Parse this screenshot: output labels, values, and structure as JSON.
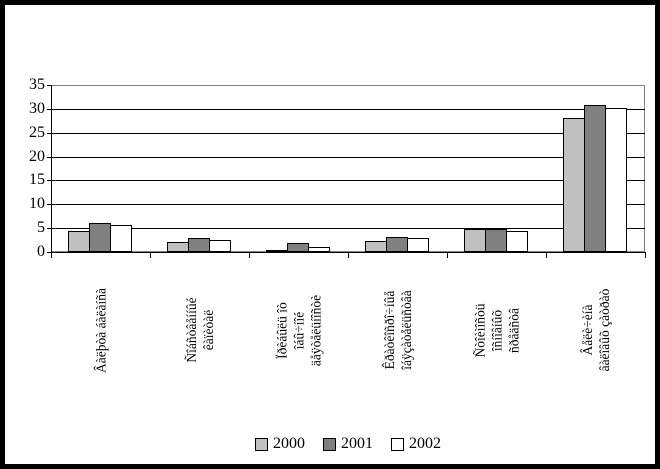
{
  "chart_data": {
    "type": "bar",
    "title": "",
    "xlabel": "",
    "ylabel": "",
    "ylim": [
      0,
      35
    ],
    "ytick_step": 5,
    "yticks": [
      0,
      5,
      10,
      15,
      20,
      25,
      30,
      35
    ],
    "grid": true,
    "legend_position": "bottom",
    "categories": [
      {
        "lines": [
          "Âàëþòà áàëàíñà"
        ]
      },
      {
        "lines": [
          "Ñîáñòâåííûé",
          "êàïèòàë"
        ]
      },
      {
        "lines": [
          "Ïðèáûëü îò",
          "îáû÷íîé",
          "äåÿòåëüíîñòè"
        ]
      },
      {
        "lines": [
          "Êðàòêîñðî÷íûå",
          "îáÿçàòåëüñòâà"
        ]
      },
      {
        "lines": [
          "Ñòîèìîñòü",
          "îñíîâíûõ",
          "ñðåäñòâ"
        ]
      },
      {
        "lines": [
          "Âåëè÷èíà",
          "âàëîâûõ çàòðàò"
        ]
      }
    ],
    "series": [
      {
        "name": "2000",
        "color": "#c0c0c0",
        "values": [
          4.5,
          2.2,
          0.5,
          2.3,
          4.8,
          28.0
        ]
      },
      {
        "name": "2001",
        "color": "#808080",
        "values": [
          6.1,
          3.0,
          1.9,
          3.2,
          4.9,
          30.8
        ]
      },
      {
        "name": "2002",
        "color": "#ffffff",
        "values": [
          5.7,
          2.5,
          1.0,
          2.9,
          4.3,
          30.2
        ]
      }
    ],
    "colors": {
      "bar_border": "#000000",
      "gridline": "#000000",
      "plot_border": "#848284",
      "frame_border": "#000000",
      "background": "#ffffff"
    }
  }
}
